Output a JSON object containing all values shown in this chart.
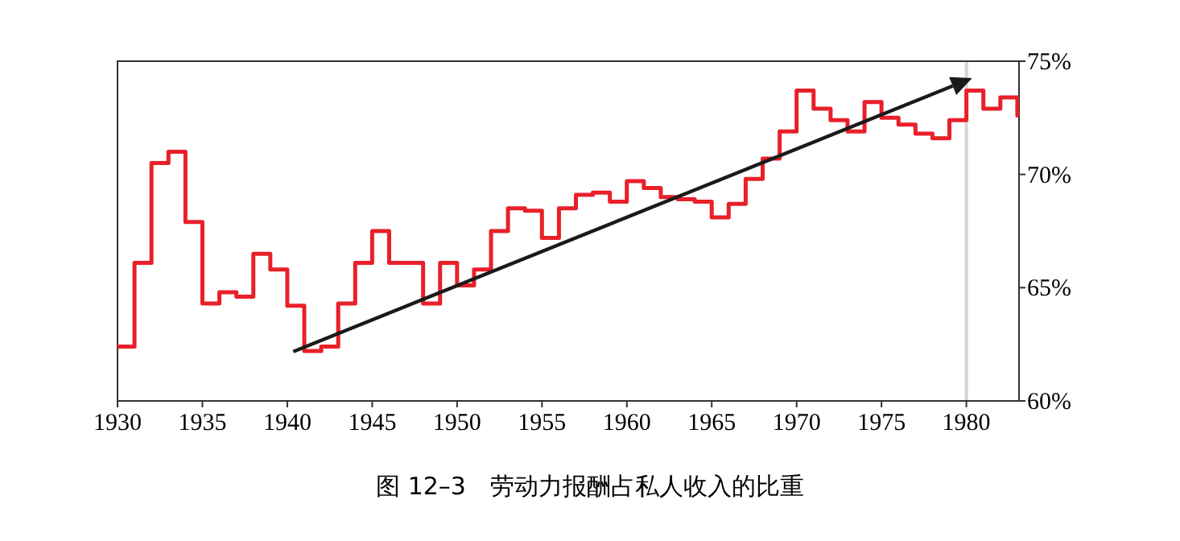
{
  "chart_data": {
    "type": "step",
    "title": "图 12–3　劳动力报酬占私人收入的比重",
    "xlim": [
      1930,
      1983.1
    ],
    "xticks": [
      1930,
      1935,
      1940,
      1945,
      1950,
      1955,
      1960,
      1965,
      1970,
      1975,
      1980
    ],
    "ylim": [
      60,
      75
    ],
    "yticks": [
      {
        "value": 60,
        "label": "60%"
      },
      {
        "value": 65,
        "label": "65%"
      },
      {
        "value": 70,
        "label": "70%"
      },
      {
        "value": 75,
        "label": "75%"
      }
    ],
    "grid": false,
    "ref_lines": [
      {
        "axis": "x",
        "value": 1980,
        "color": "#d4d4d4"
      }
    ],
    "series": [
      {
        "color": "#e8202a",
        "x": [
          1930,
          1931,
          1932,
          1933,
          1934,
          1935,
          1936,
          1937,
          1938,
          1939,
          1940,
          1941,
          1942,
          1943,
          1944,
          1945,
          1946,
          1947,
          1948,
          1949,
          1950,
          1951,
          1952,
          1953,
          1954,
          1955,
          1956,
          1957,
          1958,
          1959,
          1960,
          1961,
          1962,
          1963,
          1964,
          1965,
          1966,
          1967,
          1968,
          1969,
          1970,
          1971,
          1972,
          1973,
          1974,
          1975,
          1976,
          1977,
          1978,
          1979,
          1980,
          1981,
          1982,
          1983
        ],
        "values": [
          62.4,
          66.1,
          70.5,
          71.0,
          67.9,
          64.3,
          64.8,
          64.6,
          66.5,
          65.8,
          64.2,
          62.2,
          62.4,
          64.3,
          66.1,
          67.5,
          66.1,
          66.1,
          64.3,
          66.1,
          65.1,
          65.8,
          67.5,
          68.5,
          68.4,
          67.2,
          68.5,
          69.1,
          69.2,
          68.8,
          69.7,
          69.4,
          69.0,
          68.9,
          68.8,
          68.1,
          68.7,
          69.8,
          70.7,
          71.9,
          73.7,
          72.9,
          72.4,
          71.9,
          73.2,
          72.5,
          72.2,
          71.8,
          71.6,
          72.4,
          73.7,
          72.9,
          73.4,
          72.6
        ]
      }
    ]
  }
}
